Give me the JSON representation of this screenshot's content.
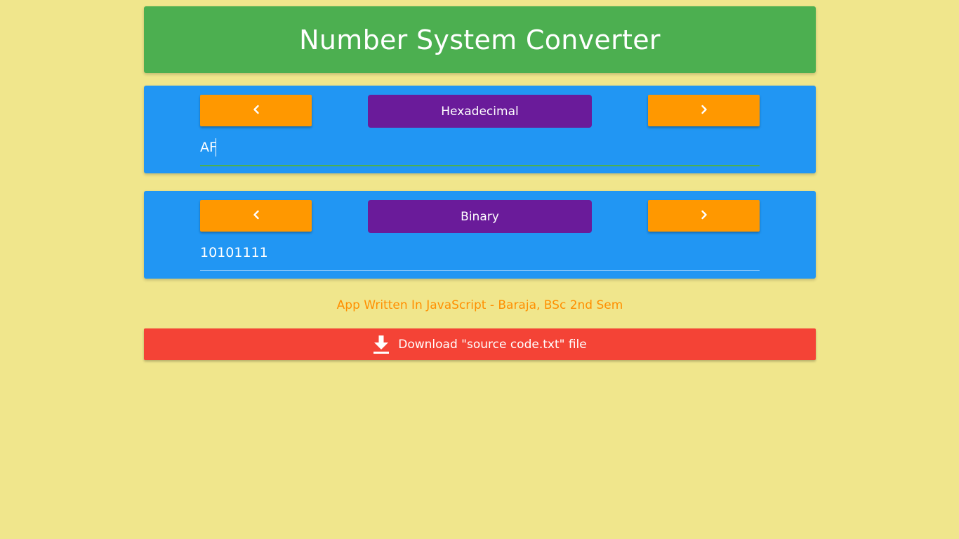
{
  "header": {
    "title": "Number System Converter"
  },
  "input_panel": {
    "prev_icon": "chevron-left-icon",
    "next_icon": "chevron-right-icon",
    "base_label": "Hexadecimal",
    "value": "AF"
  },
  "output_panel": {
    "prev_icon": "chevron-left-icon",
    "next_icon": "chevron-right-icon",
    "base_label": "Binary",
    "value": "10101111"
  },
  "credit": "App Written In JavaScript - Baraja, BSc 2nd Sem",
  "download": {
    "icon": "download-icon",
    "label": "Download \"source code.txt\" file"
  },
  "colors": {
    "background": "#F0E68C",
    "header": "#4CAF50",
    "panel": "#2196F3",
    "nav_button": "#FF9800",
    "base_label": "#6A1B9A",
    "credit_text": "#FF8F00",
    "download_button": "#F44336"
  }
}
